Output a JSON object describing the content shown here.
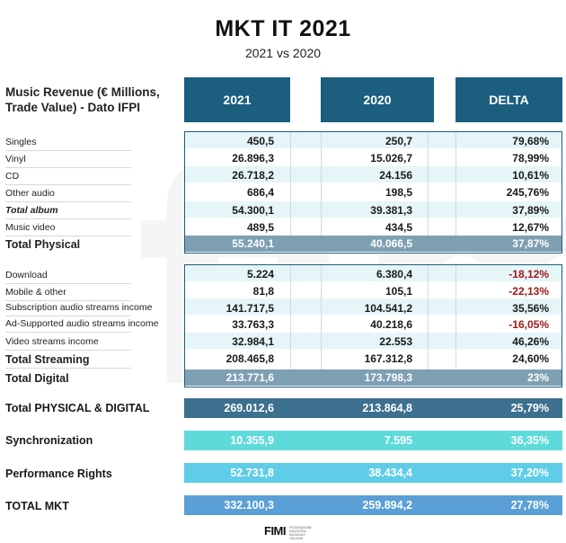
{
  "title": "MKT IT 2021",
  "subtitle": "2021 vs 2020",
  "watermark": "fimi",
  "header_label": "Music Revenue (€ Millions, Trade Value) - Dato IFPI",
  "columns": [
    "2021",
    "2020",
    "DELTA"
  ],
  "physical": {
    "rows": [
      {
        "label": "Singles",
        "y2021": "450,5",
        "y2020": "250,7",
        "delta": "79,68%"
      },
      {
        "label": "Vinyl",
        "y2021": "26.896,3",
        "y2020": "15.026,7",
        "delta": "78,99%"
      },
      {
        "label": "CD",
        "y2021": "26.718,2",
        "y2020": "24.156",
        "delta": "10,61%"
      },
      {
        "label": "Other audio",
        "y2021": "686,4",
        "y2020": "198,5",
        "delta": "245,76%"
      },
      {
        "label": "Total album",
        "y2021": "54.300,1",
        "y2020": "39.381,3",
        "delta": "37,89%"
      },
      {
        "label": "Music video",
        "y2021": "489,5",
        "y2020": "434,5",
        "delta": "12,67%"
      }
    ],
    "total": {
      "label": "Total Physical",
      "y2021": "55.240,1",
      "y2020": "40.066,5",
      "delta": "37,87%"
    }
  },
  "digital": {
    "rows": [
      {
        "label": "Download",
        "y2021": "5.224",
        "y2020": "6.380,4",
        "delta": "-18,12%"
      },
      {
        "label": "Mobile & other",
        "y2021": "81,8",
        "y2020": "105,1",
        "delta": "-22,13%"
      },
      {
        "label": "Subscription audio streams income",
        "y2021": "141.717,5",
        "y2020": "104.541,2",
        "delta": "35,56%"
      },
      {
        "label": "Ad-Supported audio streams income",
        "y2021": "33.763,3",
        "y2020": "40.218,6",
        "delta": "-16,05%"
      },
      {
        "label": "Video streams income",
        "y2021": "32.984,1",
        "y2020": "22.553",
        "delta": "46,26%"
      },
      {
        "label": "Total Streaming",
        "y2021": "208.465,8",
        "y2020": "167.312,8",
        "delta": "24,60%"
      }
    ],
    "total": {
      "label": "Total Digital",
      "y2021": "213.771,6",
      "y2020": "173.798,3",
      "delta": "23%"
    }
  },
  "summary": [
    {
      "label": "Total PHYSICAL & DIGITAL",
      "y2021": "269.012,6",
      "y2020": "213.864,8",
      "delta": "25,79%",
      "color": "#3d6f8e"
    },
    {
      "label": "Synchronization",
      "y2021": "10.355,9",
      "y2020": "7.595",
      "delta": "36,35%",
      "color": "#5fdada"
    },
    {
      "label": "Performance Rights",
      "y2021": "52.731,8",
      "y2020": "38.434,4",
      "delta": "37,20%",
      "color": "#5fcde8"
    },
    {
      "label": "TOTAL MKT",
      "y2021": "332.100,3",
      "y2020": "259.894,2",
      "delta": "27,78%",
      "color": "#5a9fd6"
    }
  ],
  "logo": {
    "text": "FIMI",
    "subtext": "FEDERAZIONE INDUSTRIA MUSICALE ITALIANA"
  },
  "colors": {
    "header": "#1b5e7e",
    "total_band": "#7f9fb2",
    "negative": "#a01818",
    "stripe": "#e6f5f8"
  }
}
